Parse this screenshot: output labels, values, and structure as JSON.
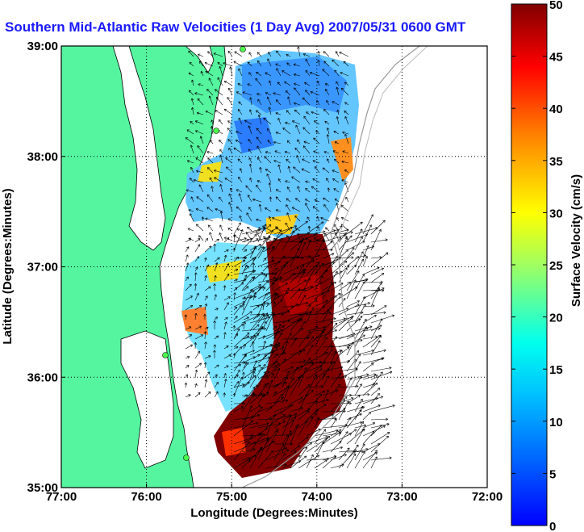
{
  "title": "Southern Mid-Atlantic Raw Velocities (1 Day Avg) 2007/05/31 0600 GMT",
  "xlabel": "Longitude (Degrees:Minutes)",
  "ylabel": "Latitude (Degrees:Minutes)",
  "colorbar_label": "Surface Velocity (cm/s)",
  "x_ticks": [
    "77:00",
    "76:00",
    "75:00",
    "74:00",
    "73:00",
    "72:00"
  ],
  "y_ticks": [
    "39:00",
    "38:00",
    "37:00",
    "36:00",
    "35:00"
  ],
  "colorbar_ticks": [
    "50",
    "45",
    "40",
    "35",
    "30",
    "25",
    "20",
    "15",
    "10",
    "5",
    "0"
  ],
  "colors": {
    "land": "#55f5a0",
    "title": "#1a1aff",
    "water": "#ffffff"
  },
  "map": {
    "lon_range": [
      -77,
      -72
    ],
    "lat_range": [
      35,
      39
    ],
    "velocity_range_cm_s": [
      0,
      50
    ],
    "grid": "dotted",
    "colormap": "jet"
  }
}
